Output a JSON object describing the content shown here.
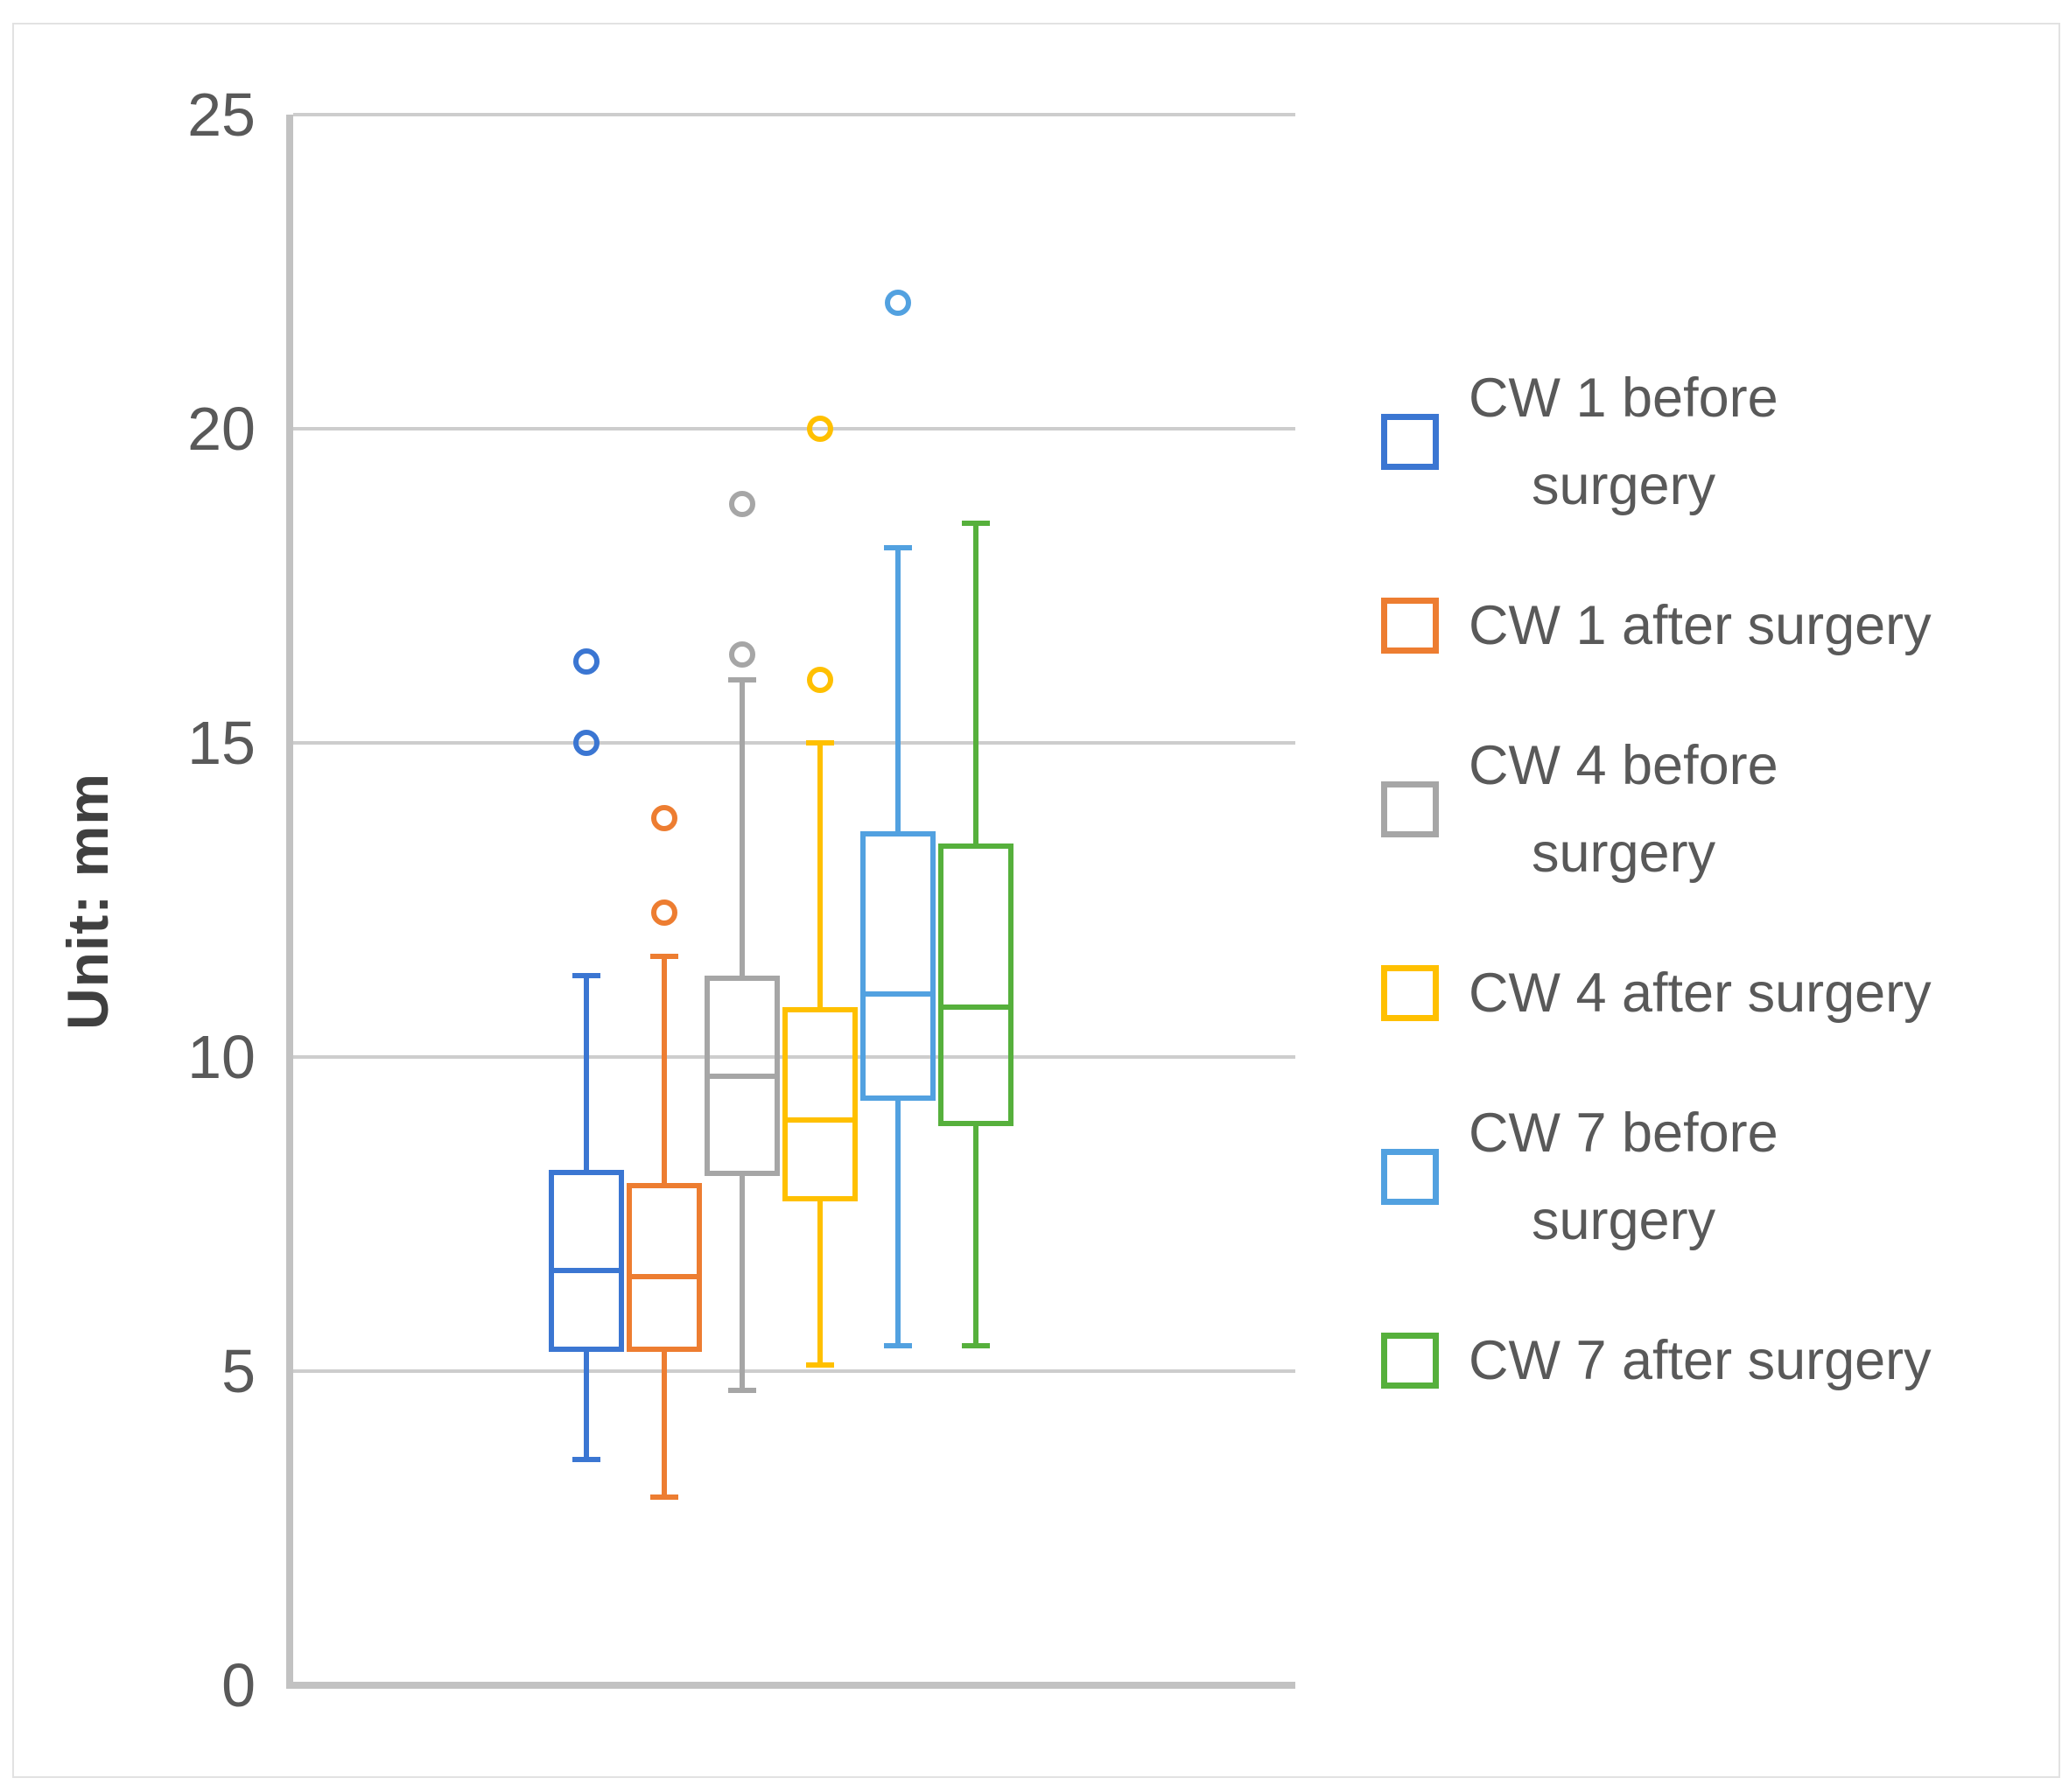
{
  "chart_data": {
    "type": "boxplot",
    "title": "",
    "ylabel": "Unit: mm",
    "ylim": [
      0,
      25
    ],
    "yticks": [
      0,
      5,
      10,
      15,
      20,
      25
    ],
    "grid": true,
    "legend_position": "right",
    "series": [
      {
        "name": "CW 1 before surgery",
        "legend_lines": [
          "CW 1 before",
          "surgery"
        ],
        "color": "#3B76D2",
        "whisker_low": 3.6,
        "q1": 5.3,
        "median": 6.6,
        "q3": 8.2,
        "whisker_high": 11.3,
        "outliers": [
          15.0,
          16.3
        ]
      },
      {
        "name": "CW 1 after surgery",
        "legend_lines": [
          "CW 1 after surgery"
        ],
        "color": "#ED7D31",
        "whisker_low": 3.0,
        "q1": 5.3,
        "median": 6.5,
        "q3": 8.0,
        "whisker_high": 11.6,
        "outliers": [
          12.3,
          13.8
        ]
      },
      {
        "name": "CW 4 before surgery",
        "legend_lines": [
          "CW 4 before",
          "surgery"
        ],
        "color": "#A6A6A6",
        "whisker_low": 4.7,
        "q1": 8.1,
        "median": 9.7,
        "q3": 11.3,
        "whisker_high": 16.0,
        "outliers": [
          16.4,
          18.8
        ]
      },
      {
        "name": "CW 4 after surgery",
        "legend_lines": [
          "CW 4 after surgery"
        ],
        "color": "#FFC000",
        "whisker_low": 5.1,
        "q1": 7.7,
        "median": 9.0,
        "q3": 10.8,
        "whisker_high": 15.0,
        "outliers": [
          16.0,
          20.0
        ]
      },
      {
        "name": "CW 7 before surgery",
        "legend_lines": [
          "CW 7 before",
          "surgery"
        ],
        "color": "#52A1E0",
        "whisker_low": 5.4,
        "q1": 9.3,
        "median": 11.0,
        "q3": 13.6,
        "whisker_high": 18.1,
        "outliers": [
          22.0
        ]
      },
      {
        "name": "CW 7 after surgery",
        "legend_lines": [
          "CW 7 after surgery"
        ],
        "color": "#56B03C",
        "whisker_low": 5.4,
        "q1": 8.9,
        "median": 10.8,
        "q3": 13.4,
        "whisker_high": 18.5,
        "outliers": []
      }
    ],
    "style_colors": {
      "gridline": "#CDCDCD",
      "axis_line": "#C2C2C2",
      "tick_text": "#595959",
      "axis_title_text": "#404040",
      "legend_text": "#595959",
      "background": "#FFFFFF"
    }
  }
}
